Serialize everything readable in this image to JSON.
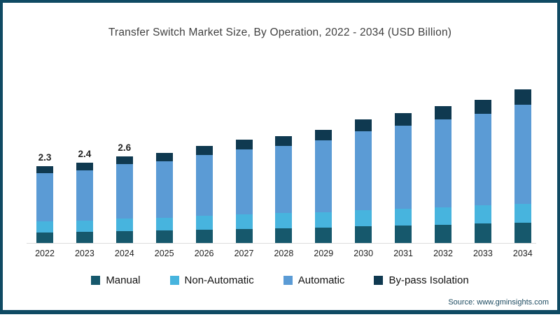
{
  "title": "Transfer Switch Market Size, By Operation, 2022 - 2034 (USD Billion)",
  "source": "Source: www.gminsights.com",
  "frame": {
    "border_color": "#0f4a63",
    "background": "#ffffff"
  },
  "chart_data": {
    "type": "bar",
    "stacked": true,
    "title": "Transfer Switch Market Size, By Operation, 2022 - 2034 (USD Billion)",
    "unit": "USD Billion",
    "xlabel": "",
    "ylabel": "",
    "ylim": [
      0,
      5
    ],
    "grid": false,
    "legend_position": "bottom",
    "categories": [
      "2022",
      "2023",
      "2024",
      "2025",
      "2026",
      "2027",
      "2028",
      "2029",
      "2030",
      "2031",
      "2032",
      "2033",
      "2034"
    ],
    "series": [
      {
        "name": "Manual",
        "color": "#16586c",
        "values": [
          0.32,
          0.33,
          0.36,
          0.37,
          0.4,
          0.42,
          0.45,
          0.47,
          0.5,
          0.53,
          0.55,
          0.58,
          0.61
        ]
      },
      {
        "name": "Non-Automatic",
        "color": "#47b4de",
        "values": [
          0.33,
          0.35,
          0.37,
          0.38,
          0.41,
          0.43,
          0.44,
          0.46,
          0.48,
          0.5,
          0.52,
          0.54,
          0.56
        ]
      },
      {
        "name": "Automatic",
        "color": "#5b9bd5",
        "values": [
          1.44,
          1.5,
          1.63,
          1.7,
          1.82,
          1.96,
          2.01,
          2.15,
          2.37,
          2.5,
          2.63,
          2.76,
          2.98
        ]
      },
      {
        "name": "By-pass Isolation",
        "color": "#0f3950",
        "values": [
          0.21,
          0.22,
          0.24,
          0.25,
          0.27,
          0.29,
          0.3,
          0.32,
          0.35,
          0.37,
          0.4,
          0.42,
          0.45
        ]
      }
    ],
    "totals": [
      2.3,
      2.4,
      2.6,
      2.7,
      2.9,
      3.1,
      3.2,
      3.4,
      3.7,
      3.9,
      4.1,
      4.3,
      4.6
    ],
    "value_labels": [
      "2.3",
      "2.4",
      "2.6",
      "",
      "",
      "",
      "",
      "",
      "",
      "",
      "",
      "",
      ""
    ]
  }
}
